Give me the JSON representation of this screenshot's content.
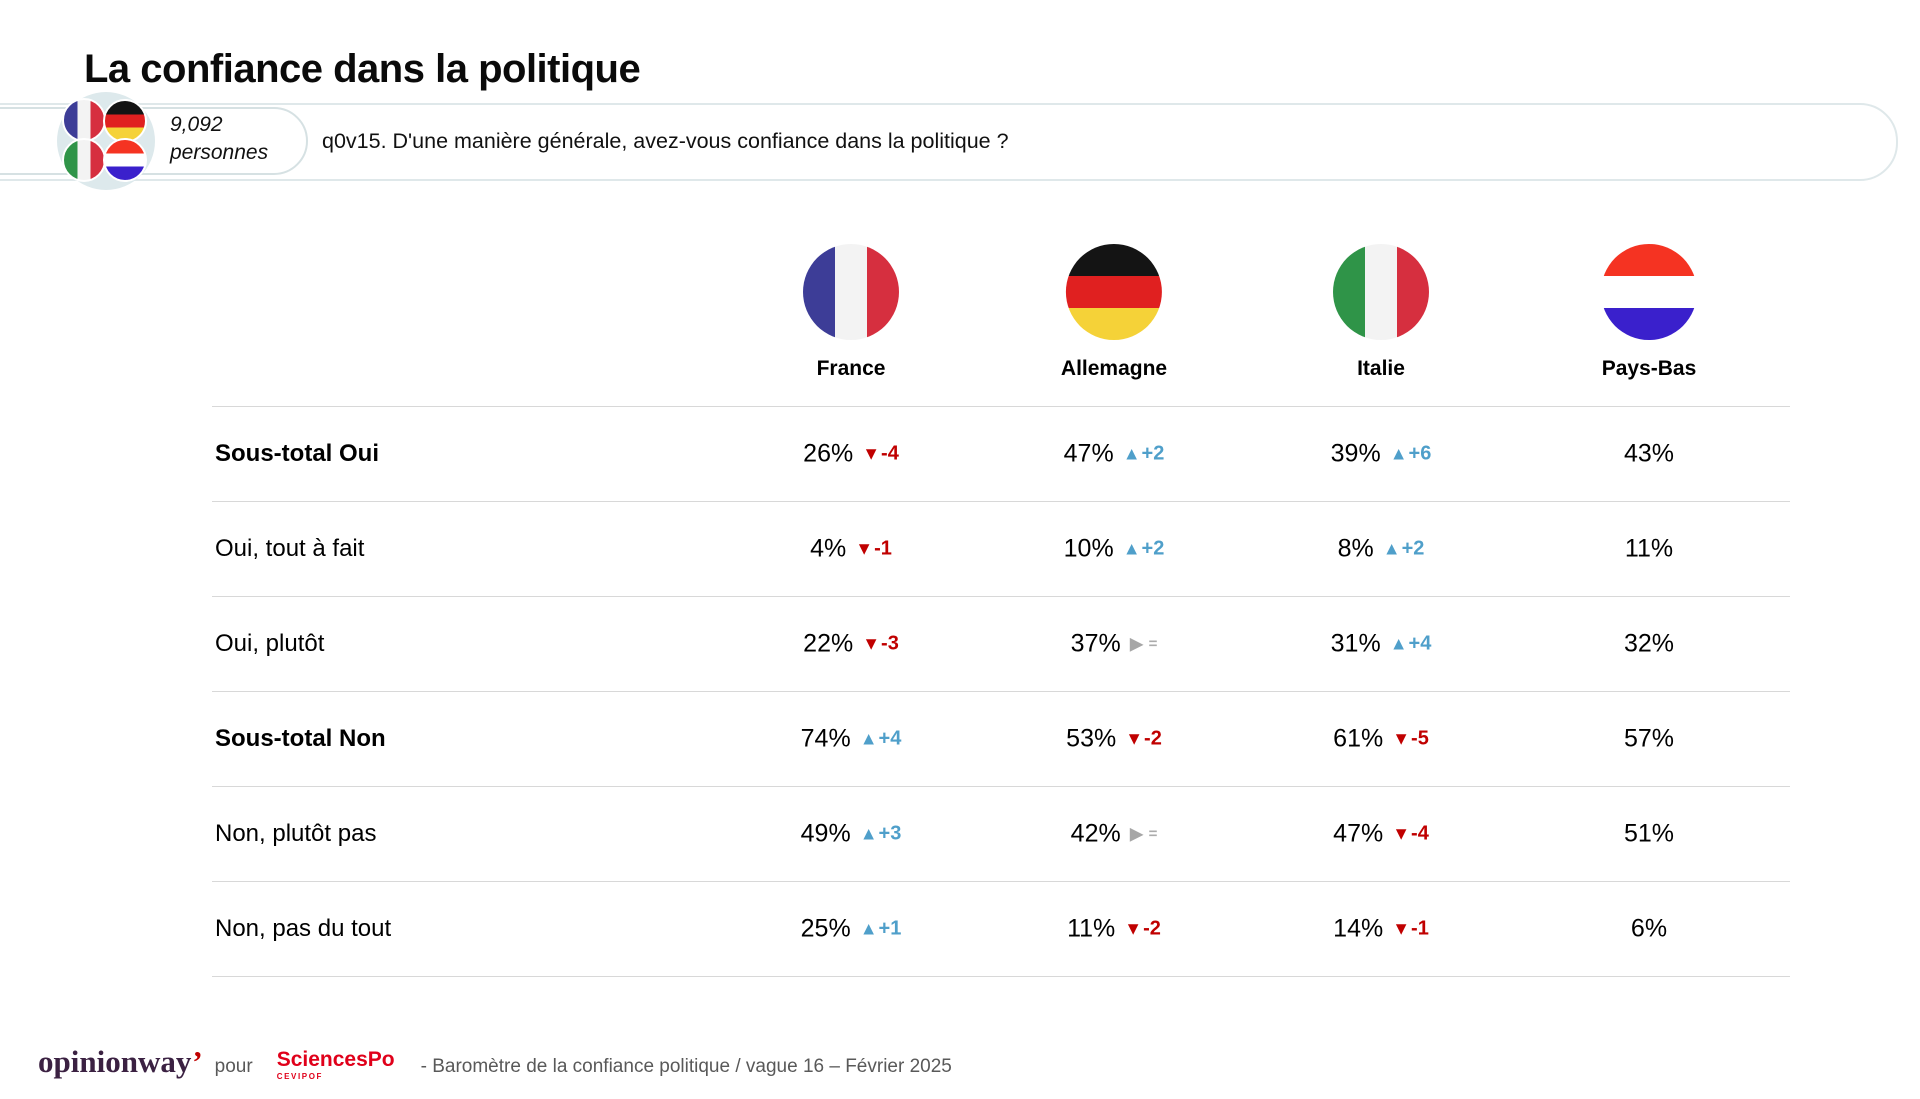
{
  "title": "La confiance dans la politique",
  "badge": {
    "count": "9,092",
    "unit": "personnes",
    "question": "q0v15. D'une manière générale, avez-vous confiance dans la politique ?"
  },
  "table": {
    "columns": [
      {
        "id": "fr",
        "label": "France"
      },
      {
        "id": "de",
        "label": "Allemagne"
      },
      {
        "id": "it",
        "label": "Italie"
      },
      {
        "id": "nl",
        "label": "Pays-Bas"
      }
    ],
    "rows": [
      {
        "label": "Sous-total Oui",
        "bold": true,
        "cells": [
          {
            "value": "26%",
            "trend": "down",
            "delta": "-4"
          },
          {
            "value": "47%",
            "trend": "up",
            "delta": "+2"
          },
          {
            "value": "39%",
            "trend": "up",
            "delta": "+6"
          },
          {
            "value": "43%"
          }
        ]
      },
      {
        "label": "Oui, tout à fait",
        "bold": false,
        "cells": [
          {
            "value": "4%",
            "trend": "down",
            "delta": "-1"
          },
          {
            "value": "10%",
            "trend": "up",
            "delta": "+2"
          },
          {
            "value": "8%",
            "trend": "up",
            "delta": "+2"
          },
          {
            "value": "11%"
          }
        ]
      },
      {
        "label": "Oui, plutôt",
        "bold": false,
        "cells": [
          {
            "value": "22%",
            "trend": "down",
            "delta": "-3"
          },
          {
            "value": "37%",
            "trend": "stable",
            "delta": "="
          },
          {
            "value": "31%",
            "trend": "up",
            "delta": "+4"
          },
          {
            "value": "32%"
          }
        ]
      },
      {
        "label": "Sous-total Non",
        "bold": true,
        "cells": [
          {
            "value": "74%",
            "trend": "up",
            "delta": "+4"
          },
          {
            "value": "53%",
            "trend": "down",
            "delta": "-2"
          },
          {
            "value": "61%",
            "trend": "down",
            "delta": "-5"
          },
          {
            "value": "57%"
          }
        ]
      },
      {
        "label": "Non, plutôt pas",
        "bold": false,
        "cells": [
          {
            "value": "49%",
            "trend": "up",
            "delta": "+3"
          },
          {
            "value": "42%",
            "trend": "stable",
            "delta": "="
          },
          {
            "value": "47%",
            "trend": "down",
            "delta": "-4"
          },
          {
            "value": "51%"
          }
        ]
      },
      {
        "label": "Non, pas du tout",
        "bold": false,
        "cells": [
          {
            "value": "25%",
            "trend": "up",
            "delta": "+1"
          },
          {
            "value": "11%",
            "trend": "down",
            "delta": "-2"
          },
          {
            "value": "14%",
            "trend": "down",
            "delta": "-1"
          },
          {
            "value": "6%"
          }
        ]
      }
    ]
  },
  "footer": {
    "brand": "opinionway",
    "brand_mark": "’",
    "pour": "pour",
    "partner": "SciencesPo",
    "partner_sub": "CEVIPOF",
    "caption": "-  Baromètre de la confiance politique / vague 16 – Février 2025"
  },
  "colors": {
    "trend_up": "#4f9fca",
    "trend_down": "#c00000",
    "trend_stable": "#a6a6a6",
    "sciencespo_red": "#e0001a",
    "brand_purple": "#3b2142",
    "footer_gray": "#595959",
    "badge_circle_bg": "#dde9ec",
    "separator": "#d8d8d8"
  },
  "chart_data": {
    "type": "table",
    "title": "La confiance dans la politique",
    "question": "q0v15. D'une manière générale, avez-vous confiance dans la politique ?",
    "sample": "9,092 personnes",
    "categories": [
      "Sous-total Oui",
      "Oui, tout à fait",
      "Oui, plutôt",
      "Sous-total Non",
      "Non, plutôt pas",
      "Non, pas du tout"
    ],
    "series": [
      {
        "name": "France",
        "values": [
          26,
          4,
          22,
          74,
          49,
          25
        ],
        "deltas": [
          -4,
          -1,
          -3,
          4,
          3,
          1
        ]
      },
      {
        "name": "Allemagne",
        "values": [
          47,
          10,
          37,
          53,
          42,
          11
        ],
        "deltas": [
          2,
          2,
          0,
          -2,
          0,
          -2
        ]
      },
      {
        "name": "Italie",
        "values": [
          39,
          8,
          31,
          61,
          47,
          14
        ],
        "deltas": [
          6,
          2,
          4,
          -5,
          -4,
          -1
        ]
      },
      {
        "name": "Pays-Bas",
        "values": [
          43,
          11,
          32,
          57,
          51,
          6
        ],
        "deltas": null
      }
    ],
    "note": "Baromètre de la confiance politique / vague 16 – Février 2025",
    "units": "%"
  }
}
